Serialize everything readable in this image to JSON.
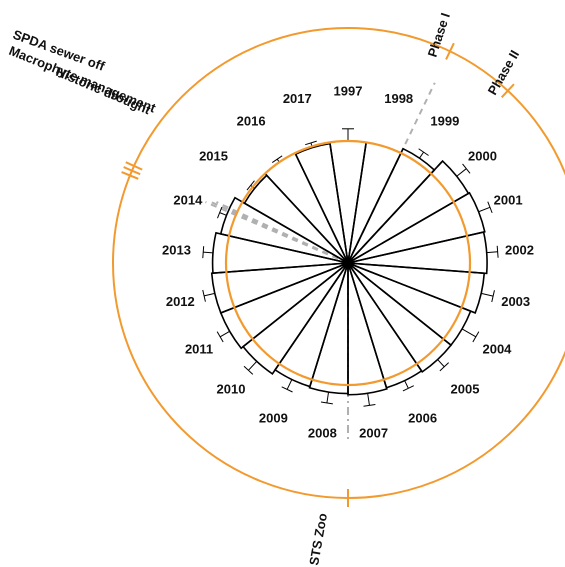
{
  "chart_data": {
    "type": "radial-bar",
    "title": "",
    "categories": [
      "1997",
      "1998",
      "1999",
      "2000",
      "2001",
      "2002",
      "2003",
      "2004",
      "2005",
      "2006",
      "2007",
      "2008",
      "2009",
      "2010",
      "2011",
      "2012",
      "2013",
      "2014",
      "2015",
      "2016",
      "2017"
    ],
    "series": [
      {
        "values": [
          1.0,
          1.0,
          1.04,
          1.14,
          1.15,
          1.14,
          1.12,
          1.08,
          1.08,
          1.07,
          1.08,
          1.07,
          1.06,
          1.1,
          1.12,
          1.12,
          1.11,
          1.07,
          0.98,
          1.0,
          0.99
        ],
        "error": [
          0.1,
          0.0,
          0.06,
          0.1,
          0.1,
          0.09,
          0.1,
          0.13,
          0.08,
          0.07,
          0.1,
          0.09,
          0.09,
          0.1,
          0.09,
          0.09,
          0.08,
          0.06,
          0.04,
          0.03,
          0.04
        ]
      }
    ],
    "reference_level": 1.0,
    "colors": {
      "reference_circle": "#f29a2e",
      "bars": "#000000",
      "event_lines": "#b0b0b0"
    },
    "events": [
      {
        "label": "Phase I",
        "year_position": 1998.5
      },
      {
        "label": "Phase II",
        "year_position": 1999.5
      },
      {
        "label": "SPDA sewer off",
        "year_position": 2014.1
      },
      {
        "label": "Macrophyte management",
        "year_position": 2014.15
      },
      {
        "label": "Historic drought",
        "year_position": 2014.2
      },
      {
        "label": "STS Zoo",
        "year_position": 2007.5
      }
    ]
  }
}
